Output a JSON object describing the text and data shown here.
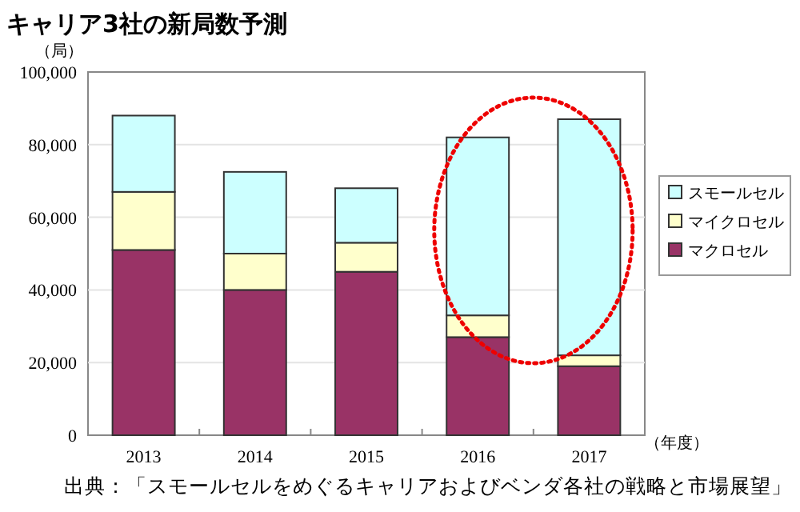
{
  "chart_data": {
    "type": "bar",
    "title": "キャリア3社の新局数予測",
    "ylabel": "（局）",
    "xlabel": "（年度）",
    "stacked": true,
    "categories": [
      "2013",
      "2014",
      "2015",
      "2016",
      "2017"
    ],
    "series": [
      {
        "name": "マクロセル",
        "color": "#993366",
        "values": [
          51000,
          40000,
          45000,
          27000,
          19000
        ]
      },
      {
        "name": "マイクロセル",
        "color": "#ffffcc",
        "values": [
          16000,
          10000,
          8000,
          6000,
          3000
        ]
      },
      {
        "name": "スモールセル",
        "color": "#ccffff",
        "values": [
          21000,
          22500,
          15000,
          49000,
          65000
        ]
      }
    ],
    "ylim": [
      0,
      100000
    ],
    "yticks": [
      {
        "value": 0,
        "label": "0"
      },
      {
        "value": 20000,
        "label": "20,000"
      },
      {
        "value": 40000,
        "label": "40,000"
      },
      {
        "value": 60000,
        "label": "60,000"
      },
      {
        "value": 80000,
        "label": "80,000"
      },
      {
        "value": 100000,
        "label": "100,000"
      }
    ],
    "grid": "y",
    "legend": "right",
    "annotations": [
      "出典：「スモールセルをめぐるキャリアおよびベンダ各社の戦略と市場展望」"
    ]
  }
}
